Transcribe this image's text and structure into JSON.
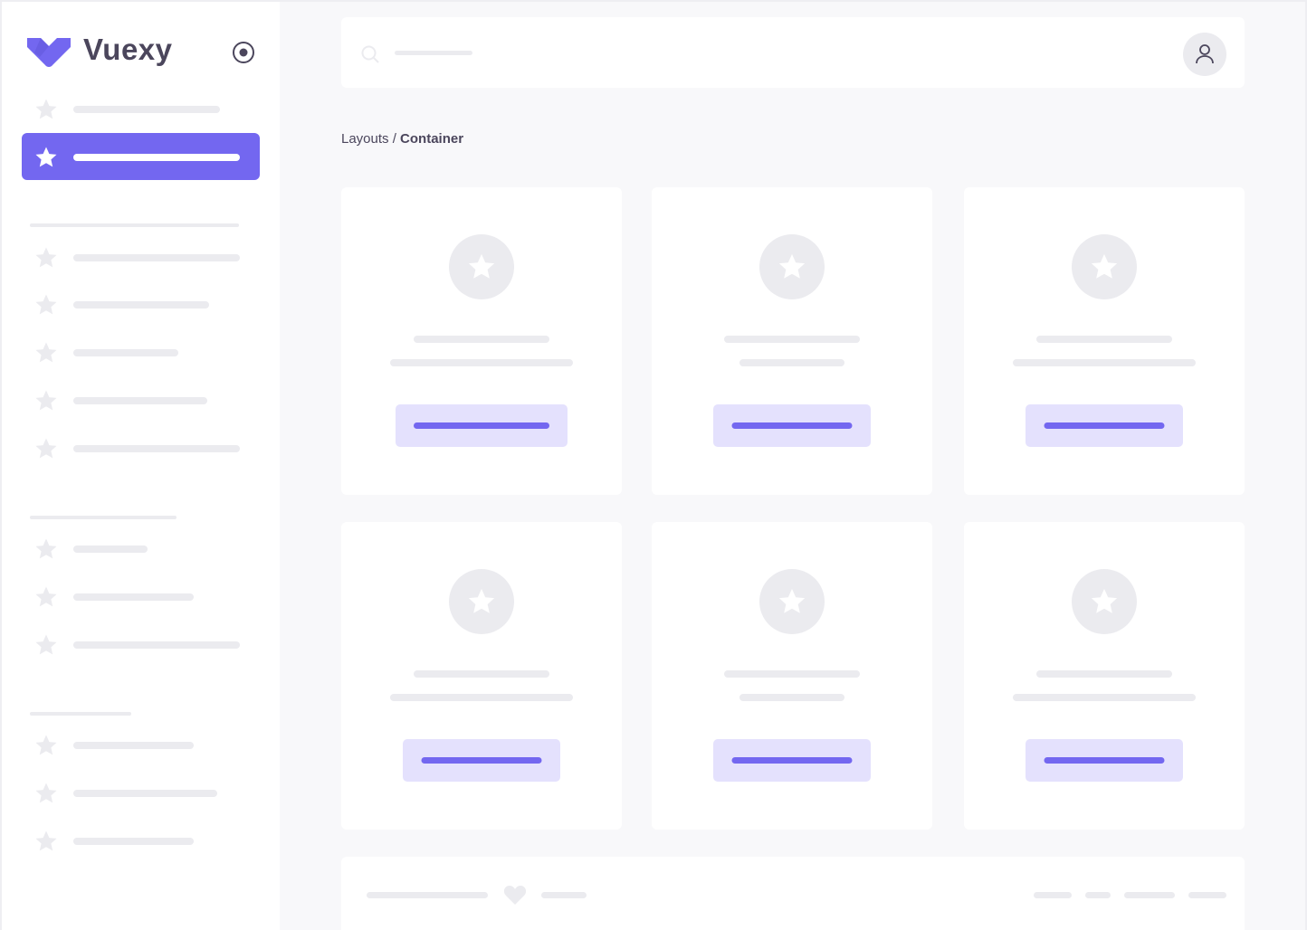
{
  "brand": {
    "name": "Vuexy",
    "color": "#7367f0"
  },
  "breadcrumb": {
    "parent": "Layouts / ",
    "current": "Container"
  },
  "icons": {
    "nav": "star-icon",
    "toggle": "radio-circle-icon",
    "search": "search-icon",
    "user": "user-icon",
    "footer": "heart-icon"
  },
  "colors": {
    "accent": "#7367f0",
    "accent_light": "#e4e1fd",
    "placeholder": "#ebebef",
    "text": "#4b465c"
  },
  "sidebar": {
    "active_index": 1
  },
  "cards": {
    "count": 6
  }
}
